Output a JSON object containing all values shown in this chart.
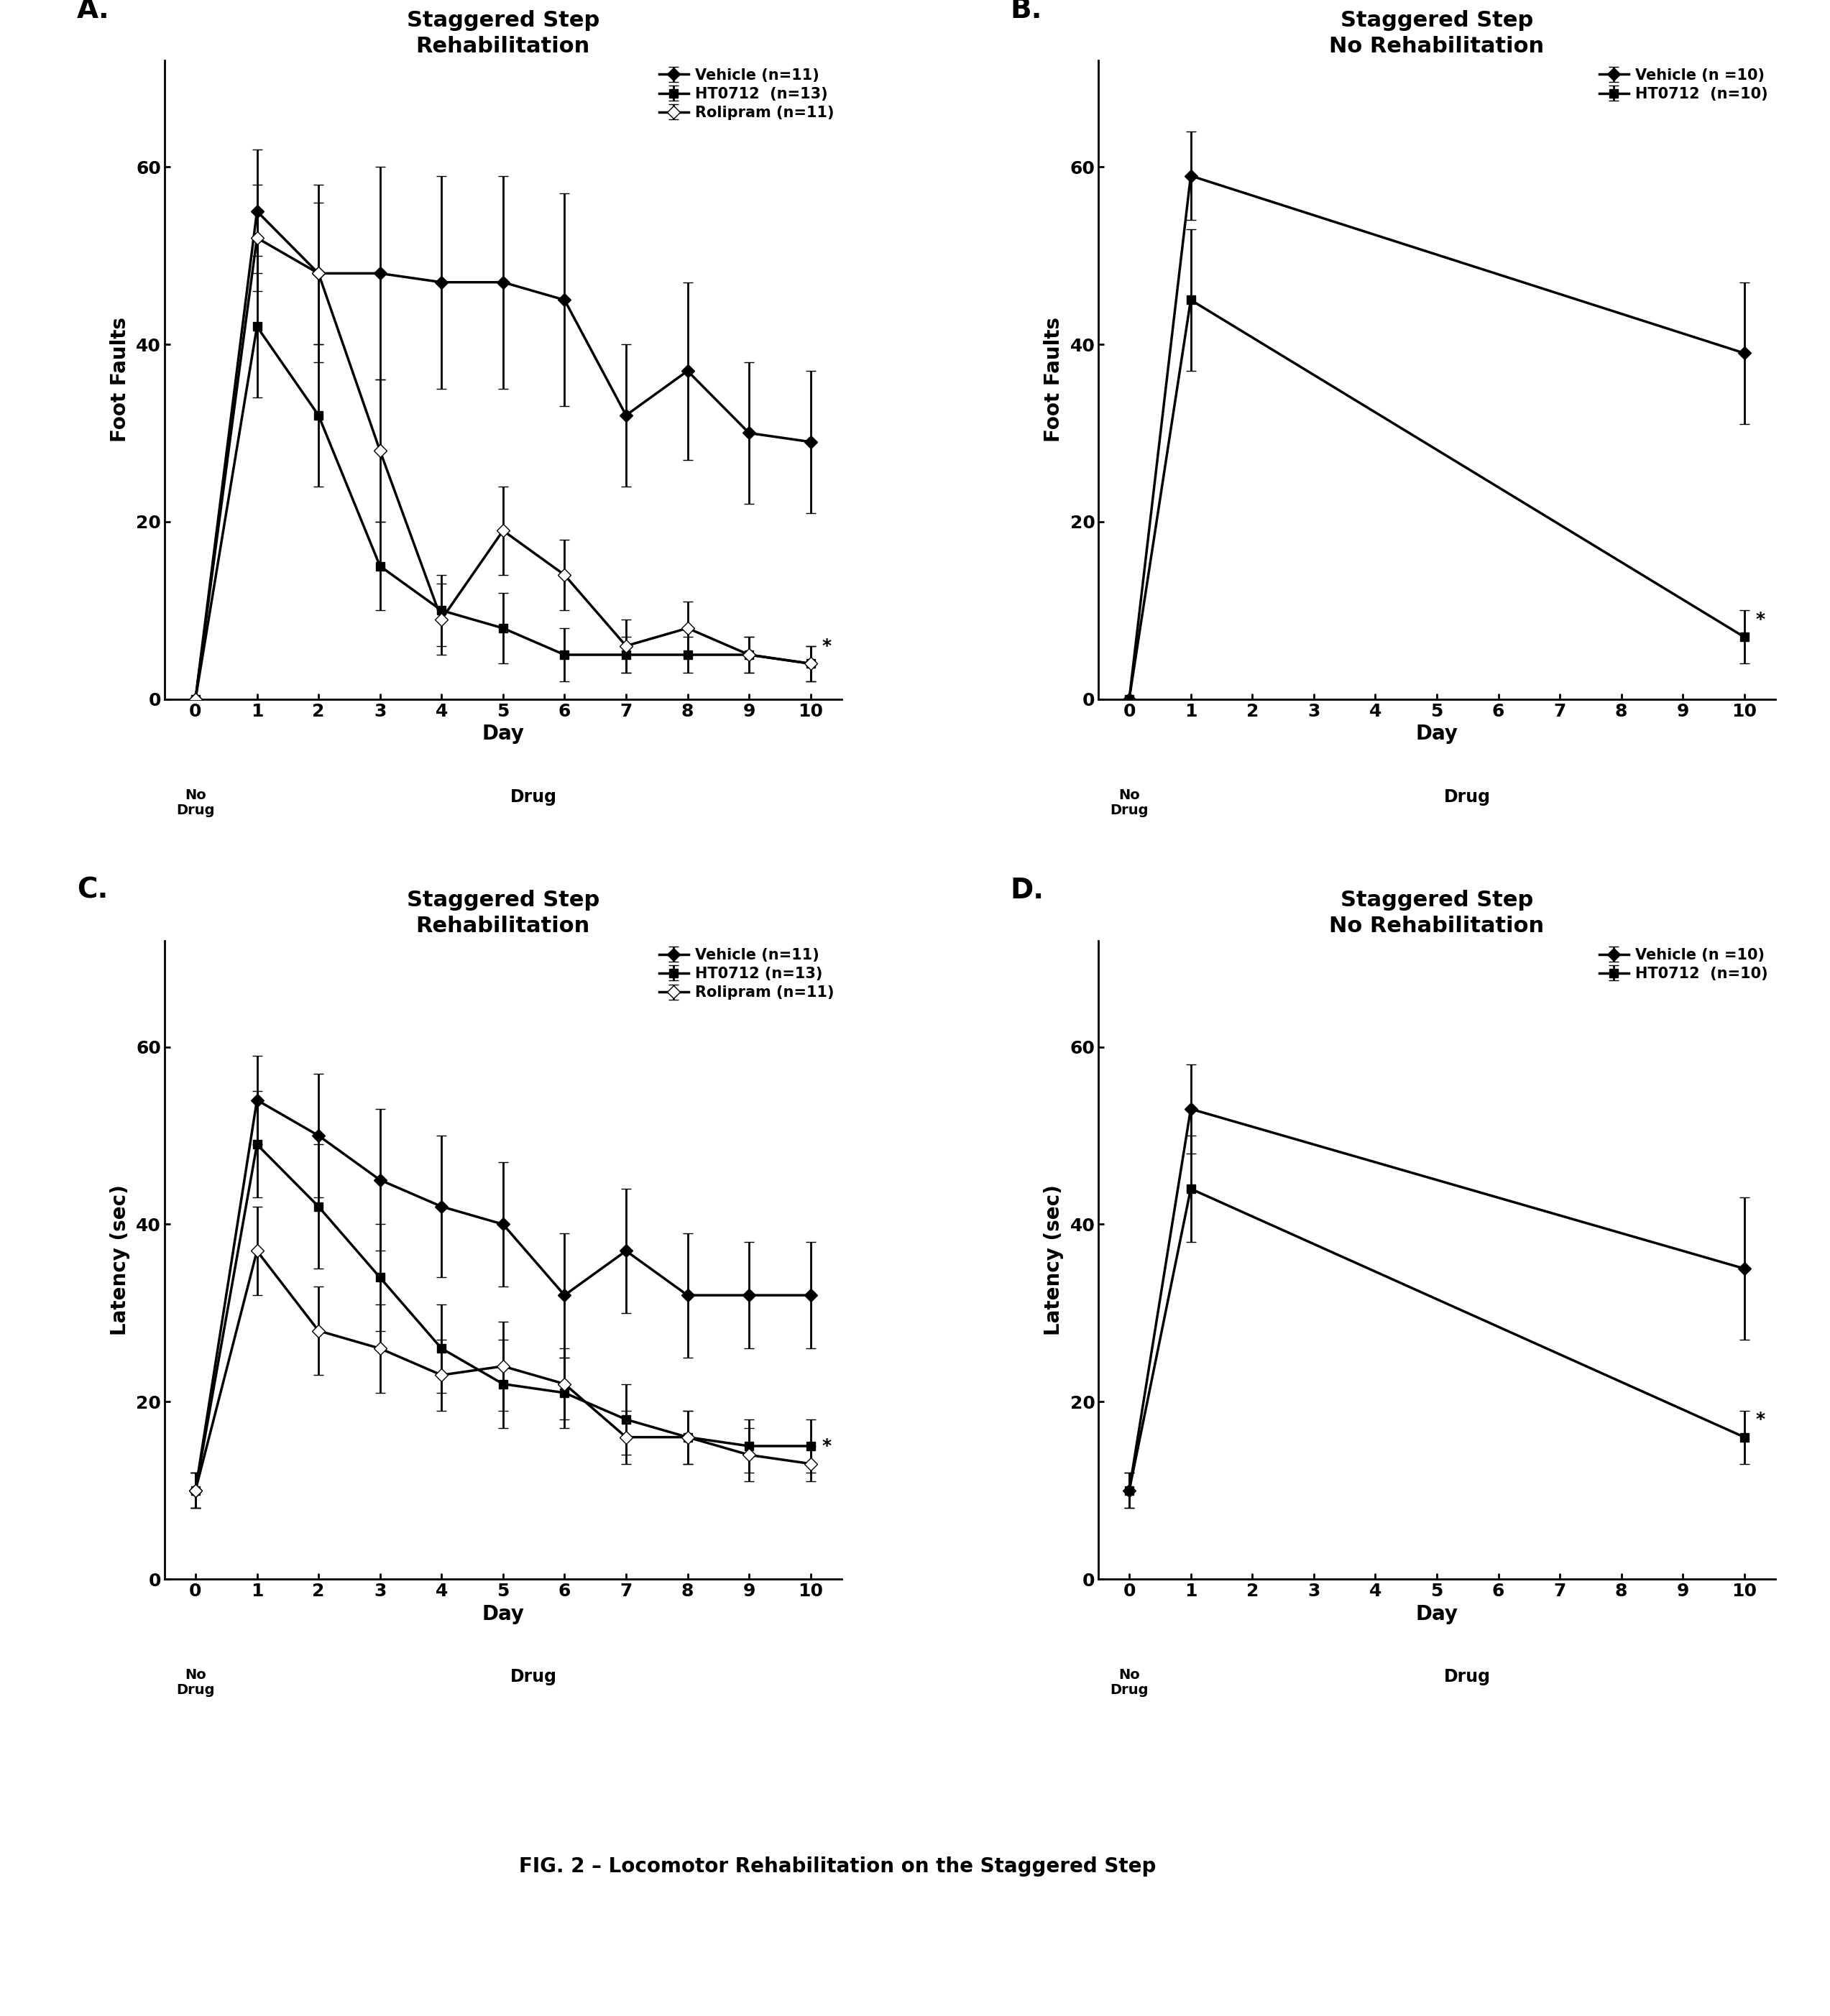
{
  "A": {
    "title": "Staggered Step\nRehabilitation",
    "ylabel": "Foot Faults",
    "xlabel": "Day",
    "days_full": [
      0,
      1,
      2,
      3,
      4,
      5,
      6,
      7,
      8,
      9,
      10
    ],
    "vehicle": [
      0,
      55,
      48,
      48,
      47,
      47,
      45,
      32,
      37,
      30,
      29
    ],
    "vehicle_err": [
      0,
      7,
      10,
      12,
      12,
      12,
      12,
      8,
      10,
      8,
      8
    ],
    "ht0712": [
      0,
      42,
      32,
      15,
      10,
      8,
      5,
      5,
      5,
      5,
      4
    ],
    "ht0712_err": [
      0,
      8,
      8,
      5,
      4,
      4,
      3,
      2,
      2,
      2,
      2
    ],
    "rolipram": [
      0,
      52,
      48,
      28,
      9,
      19,
      14,
      6,
      8,
      5,
      4
    ],
    "rolipram_err": [
      0,
      6,
      8,
      8,
      4,
      5,
      4,
      3,
      3,
      2,
      2
    ],
    "legend_vehicle": "Vehicle (n=11)",
    "legend_ht0712": "HT0712  (n=13)",
    "legend_rolipram": "Rolipram (n=11)",
    "ylim": [
      0,
      72
    ],
    "yticks": [
      0,
      20,
      40,
      60
    ],
    "nodrug_label": "No\nDrug",
    "drug_label": "Drug"
  },
  "B": {
    "title": "Staggered Step\nNo Rehabilitation",
    "ylabel": "Foot Faults",
    "xlabel": "Day",
    "days_sparse": [
      0,
      1,
      10
    ],
    "vehicle": [
      0,
      59,
      39
    ],
    "vehicle_err": [
      0,
      5,
      8
    ],
    "ht0712": [
      0,
      45,
      7
    ],
    "ht0712_err": [
      0,
      8,
      3
    ],
    "legend_vehicle": "Vehicle (n =10)",
    "legend_ht0712": "HT0712  (n=10)",
    "ylim": [
      0,
      72
    ],
    "yticks": [
      0,
      20,
      40,
      60
    ],
    "nodrug_label": "No\nDrug",
    "drug_label": "Drug"
  },
  "C": {
    "title": "Staggered Step\nRehabilitation",
    "ylabel": "Latency (sec)",
    "xlabel": "Day",
    "days_full": [
      0,
      1,
      2,
      3,
      4,
      5,
      6,
      7,
      8,
      9,
      10
    ],
    "vehicle": [
      10,
      54,
      50,
      45,
      42,
      40,
      32,
      37,
      32,
      32,
      32
    ],
    "vehicle_err": [
      2,
      5,
      7,
      8,
      8,
      7,
      7,
      7,
      7,
      6,
      6
    ],
    "ht0712": [
      10,
      49,
      42,
      34,
      26,
      22,
      21,
      18,
      16,
      15,
      15
    ],
    "ht0712_err": [
      2,
      6,
      7,
      6,
      5,
      5,
      4,
      4,
      3,
      3,
      3
    ],
    "rolipram": [
      10,
      37,
      28,
      26,
      23,
      24,
      22,
      16,
      16,
      14,
      13
    ],
    "rolipram_err": [
      2,
      5,
      5,
      5,
      4,
      5,
      4,
      3,
      3,
      3,
      2
    ],
    "legend_vehicle": "Vehicle (n=11)",
    "legend_ht0712": "HT0712 (n=13)",
    "legend_rolipram": "Rolipram (n=11)",
    "ylim": [
      0,
      72
    ],
    "yticks": [
      0,
      20,
      40,
      60
    ],
    "nodrug_label": "No\nDrug",
    "drug_label": "Drug"
  },
  "D": {
    "title": "Staggered Step\nNo Rehabilitation",
    "ylabel": "Latency (sec)",
    "xlabel": "Day",
    "days_sparse": [
      0,
      1,
      10
    ],
    "vehicle": [
      10,
      53,
      35
    ],
    "vehicle_err": [
      2,
      5,
      8
    ],
    "ht0712": [
      10,
      44,
      16
    ],
    "ht0712_err": [
      2,
      6,
      3
    ],
    "legend_vehicle": "Vehicle (n =10)",
    "legend_ht0712": "HT0712  (n=10)",
    "ylim": [
      0,
      72
    ],
    "yticks": [
      0,
      20,
      40,
      60
    ],
    "nodrug_label": "No\nDrug",
    "drug_label": "Drug"
  },
  "fig_caption": "FIG. 2 – Locomotor Rehabilitation on the Staggered Step",
  "background_color": "#ffffff",
  "title_fontsize": 22,
  "label_fontsize": 20,
  "tick_fontsize": 18,
  "legend_fontsize": 15,
  "panel_label_fontsize": 28,
  "caption_fontsize": 20,
  "nodrug_fontsize": 14,
  "drug_fontsize": 17,
  "lw": 2.5,
  "ms": 9,
  "capsize": 5,
  "elinewidth": 2.0
}
